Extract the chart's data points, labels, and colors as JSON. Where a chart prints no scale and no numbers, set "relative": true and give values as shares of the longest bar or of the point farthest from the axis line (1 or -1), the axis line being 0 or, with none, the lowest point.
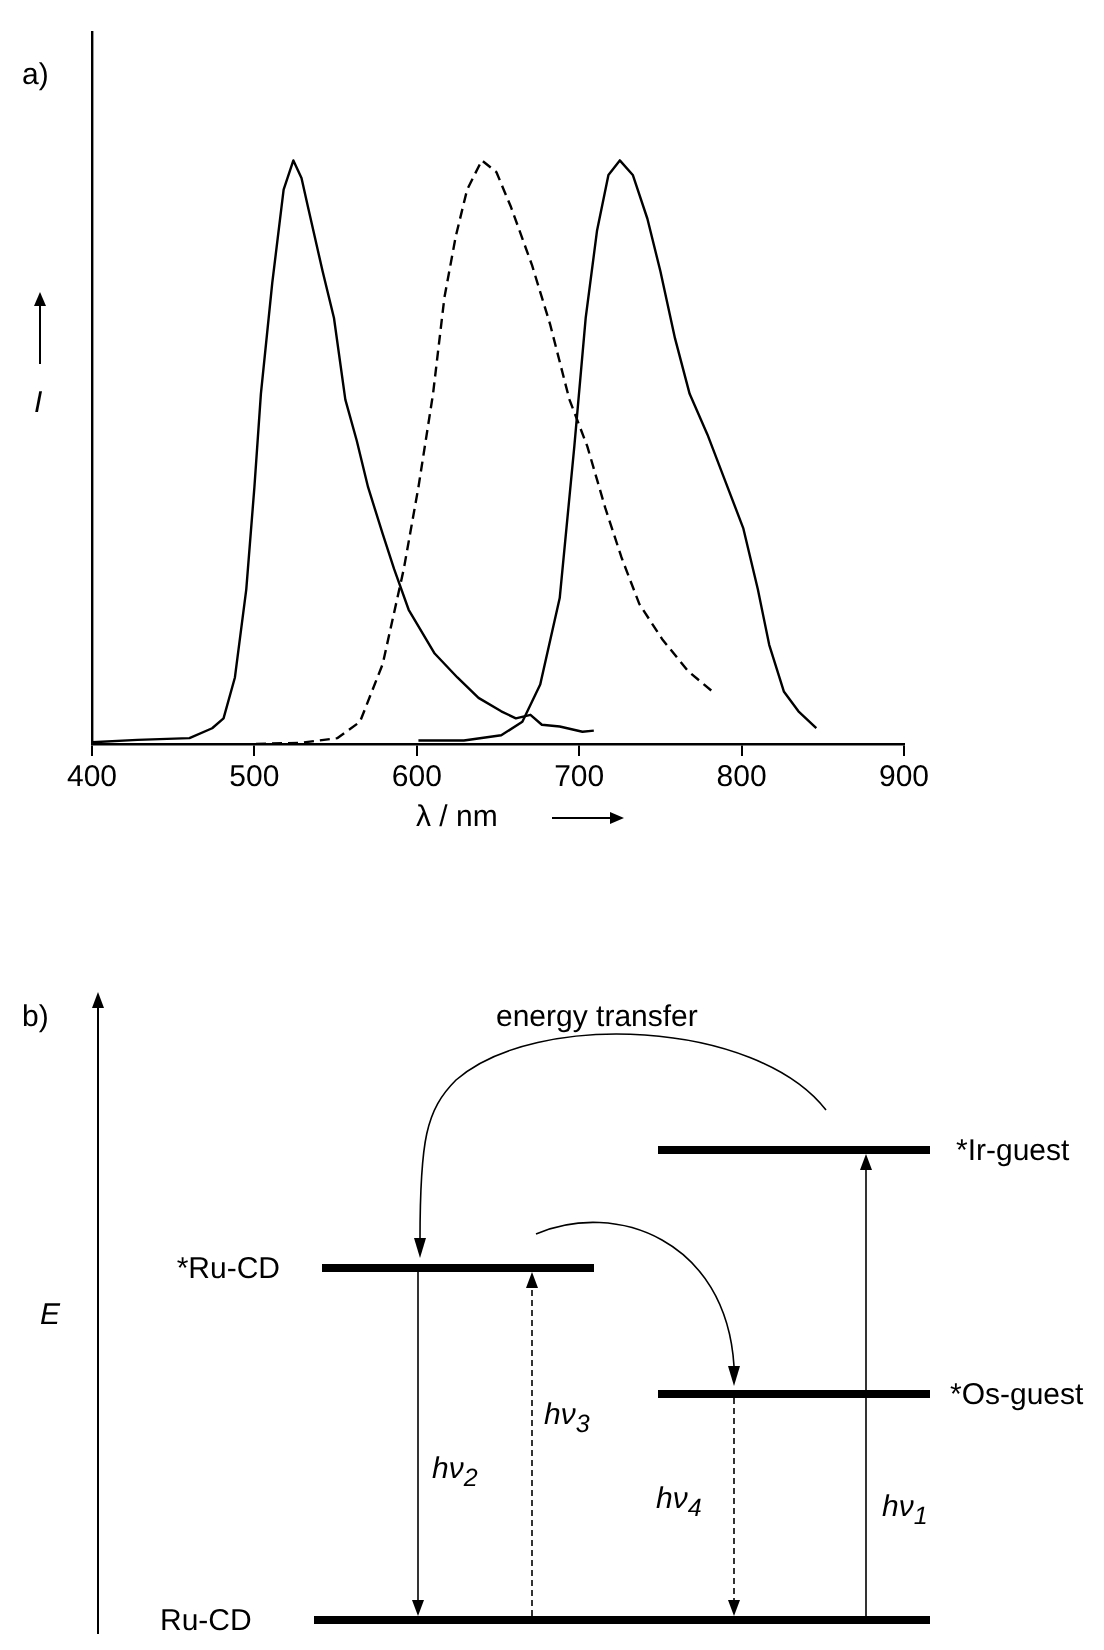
{
  "chart_data": [
    {
      "type": "line",
      "title": "a)",
      "xlabel": "λ / nm",
      "ylabel": "I",
      "relative": true,
      "xlim": [
        400,
        900
      ],
      "xticks": [
        400,
        500,
        600,
        700,
        800,
        900
      ],
      "grid": false,
      "legend": false,
      "marker": "none",
      "series": [
        {
          "color": "#000000",
          "line_style": "solid",
          "x": [
            400,
            428,
            460,
            474,
            481,
            488,
            495,
            500,
            504,
            511,
            518,
            524,
            529,
            533,
            542,
            549,
            556,
            563,
            570,
            579,
            586,
            595,
            611,
            625,
            638,
            652,
            661,
            670,
            677,
            688,
            702,
            709
          ],
          "values": [
            0.003,
            0.007,
            0.01,
            0.027,
            0.044,
            0.114,
            0.265,
            0.44,
            0.6,
            0.79,
            0.95,
            1.0,
            0.97,
            0.92,
            0.81,
            0.73,
            0.59,
            0.52,
            0.44,
            0.36,
            0.3,
            0.23,
            0.155,
            0.114,
            0.079,
            0.056,
            0.044,
            0.05,
            0.033,
            0.03,
            0.021,
            0.023
          ]
        },
        {
          "color": "#000000",
          "line_style": "dashed",
          "x": [
            501,
            528,
            551,
            565,
            579,
            592,
            601,
            610,
            617,
            624,
            631,
            640,
            649,
            658,
            671,
            682,
            694,
            705,
            716,
            726,
            737,
            751,
            767,
            782
          ],
          "values": [
            0.0,
            0.002,
            0.01,
            0.038,
            0.137,
            0.3,
            0.44,
            0.6,
            0.765,
            0.87,
            0.95,
            1.0,
            0.98,
            0.92,
            0.82,
            0.72,
            0.59,
            0.51,
            0.405,
            0.32,
            0.24,
            0.18,
            0.125,
            0.09
          ]
        },
        {
          "color": "#000000",
          "line_style": "solid",
          "x": [
            601,
            616,
            629,
            652,
            665,
            676,
            688,
            697,
            704,
            711,
            718,
            725,
            733,
            742,
            750,
            759,
            768,
            779,
            790,
            801,
            810,
            817,
            826,
            835,
            846
          ],
          "values": [
            0.006,
            0.006,
            0.006,
            0.015,
            0.038,
            0.102,
            0.25,
            0.51,
            0.73,
            0.88,
            0.975,
            1.0,
            0.975,
            0.9,
            0.81,
            0.695,
            0.6,
            0.53,
            0.45,
            0.37,
            0.265,
            0.17,
            0.09,
            0.056,
            0.027
          ]
        }
      ]
    },
    {
      "type": "other",
      "title": "b)",
      "ylabel": "E",
      "annotations": [
        "energy transfer",
        "*Ir-guest",
        "*Ru-CD",
        "*Os-guest",
        "Ru-CD",
        "hν$_{1}$",
        "hν$_{2}$",
        "hν$_{3}$",
        "hν$_{4}$"
      ]
    }
  ]
}
